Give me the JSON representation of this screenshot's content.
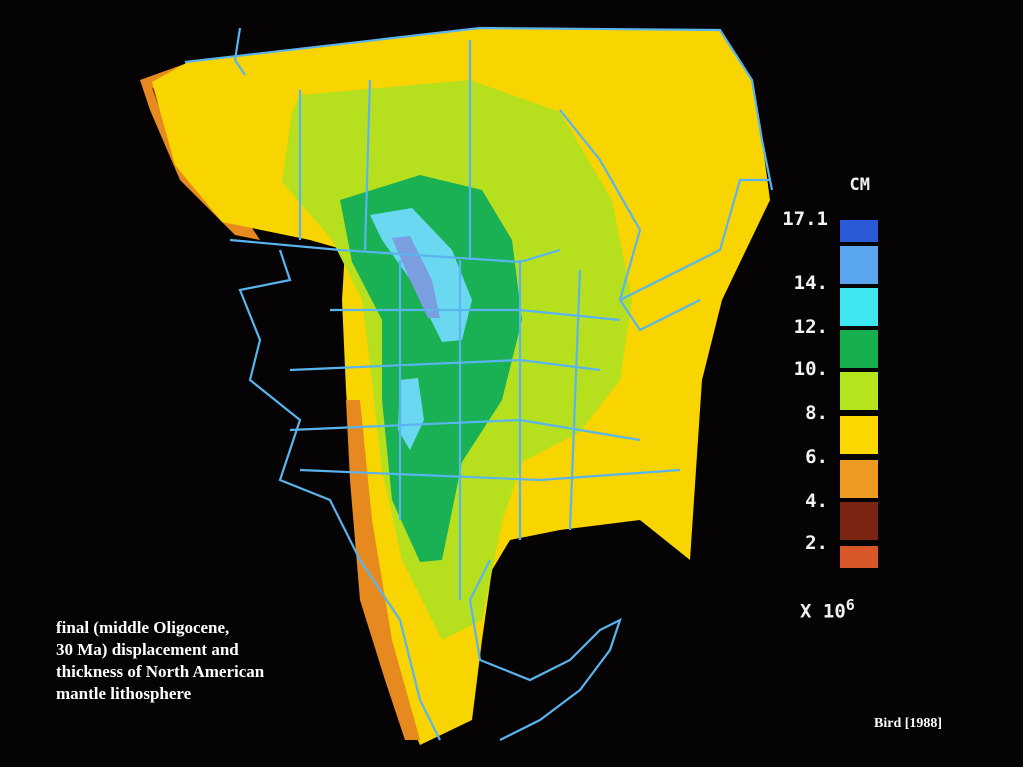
{
  "caption": {
    "lines": [
      "final (middle Oligocene,",
      "30 Ma) displacement and",
      "thickness of North American",
      "mantle lithosphere"
    ]
  },
  "credit": "Bird [1988]",
  "legend": {
    "unit": "CM",
    "multiplier": "X 10",
    "exponent": "6",
    "labels": [
      "17.1",
      "14.",
      "12.",
      "10.",
      "8.",
      "6.",
      "4.",
      "2."
    ],
    "swatches": [
      "#2a5ad8",
      "#5aa6ee",
      "#3ee6f2",
      "#16b04e",
      "#b4e41c",
      "#fdd800",
      "#ec9a22",
      "#7a2412",
      "#d9562a"
    ]
  },
  "map": {
    "boundary_color": "#5ab4ee",
    "colors": {
      "background": "#050303",
      "yellow": "#f8d400",
      "light_green": "#b6e01e",
      "dark_green": "#1ab054",
      "cyan": "#6ad8f0",
      "blue": "#7a9ee0",
      "orange": "#e68a20",
      "brown": "#8a2a14"
    }
  }
}
